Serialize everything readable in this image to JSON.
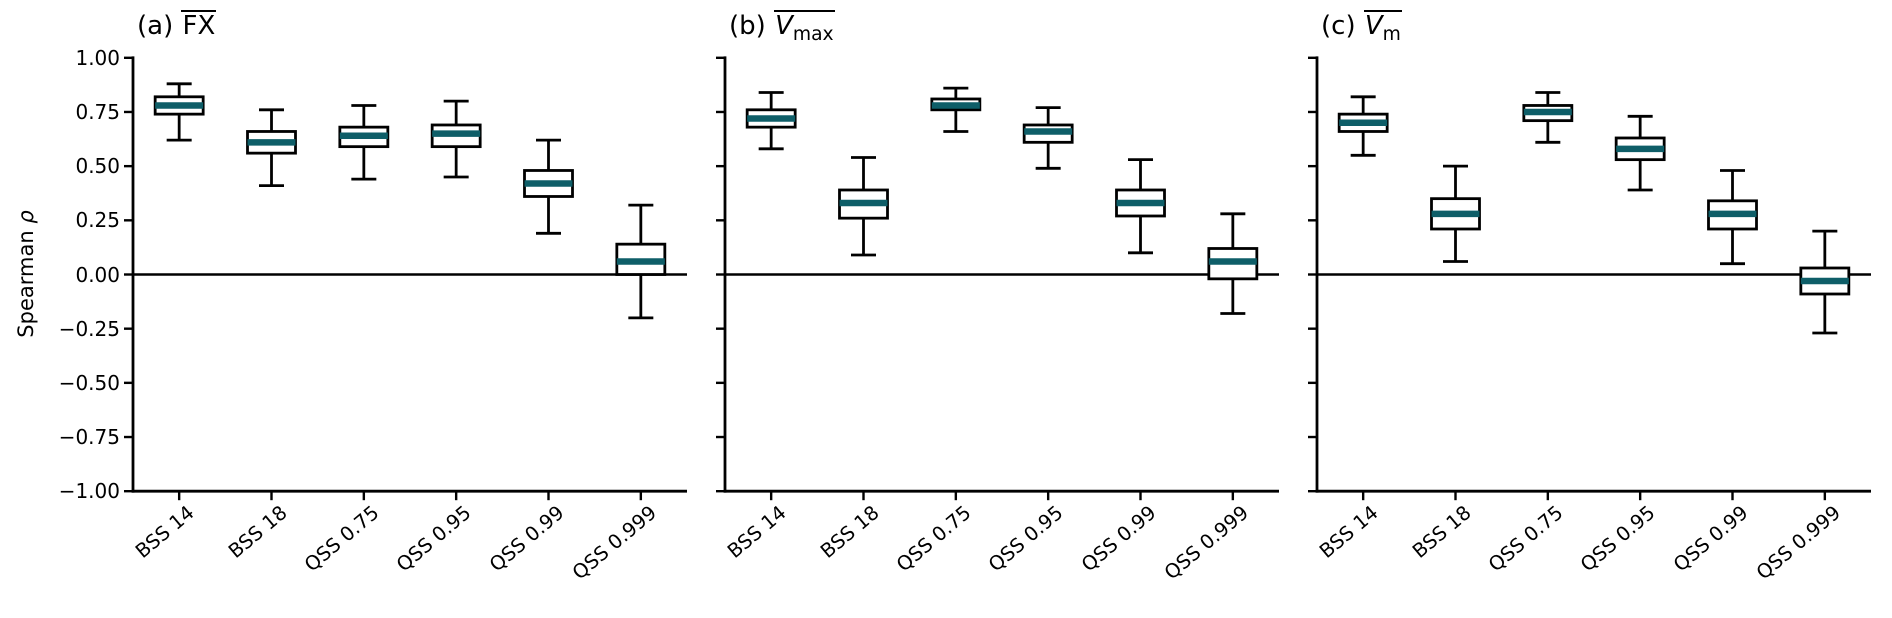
{
  "figure": {
    "ylabel_text": "Spearman",
    "ylabel_symbol": "ρ",
    "background": "#ffffff",
    "axis_color": "#000000",
    "median_color": "#0e5e68",
    "box_fill": "#ffffff",
    "y_axis": {
      "min": -1.0,
      "max": 1.0,
      "ticks": [
        {
          "value": 1.0,
          "label": "1.00"
        },
        {
          "value": 0.75,
          "label": "0.75"
        },
        {
          "value": 0.5,
          "label": "0.50"
        },
        {
          "value": 0.25,
          "label": "0.25"
        },
        {
          "value": 0.0,
          "label": "0.00"
        },
        {
          "value": -0.25,
          "label": "−0.25"
        },
        {
          "value": -0.5,
          "label": "−0.50"
        },
        {
          "value": -0.75,
          "label": "−0.75"
        },
        {
          "value": -1.0,
          "label": "−1.00"
        }
      ]
    },
    "categories": [
      "BSS 14",
      "BSS 18",
      "QSS 0.75",
      "QSS 0.95",
      "QSS 0.99",
      "QSS 0.999"
    ]
  },
  "chart_data": [
    {
      "type": "boxplot",
      "panel": "a",
      "title": {
        "prefix": "(a)",
        "overlined": "FX",
        "italic_main": false,
        "subscript": ""
      },
      "ylabel": "Spearman ρ",
      "ylim": [
        -1.0,
        1.0
      ],
      "zero_line": true,
      "show_y_tick_labels": true,
      "categories": [
        "BSS 14",
        "BSS 18",
        "QSS 0.75",
        "QSS 0.95",
        "QSS 0.99",
        "QSS 0.999"
      ],
      "boxes": [
        {
          "category": "BSS 14",
          "whisker_low": 0.62,
          "q1": 0.74,
          "median": 0.78,
          "q3": 0.82,
          "whisker_high": 0.88
        },
        {
          "category": "BSS 18",
          "whisker_low": 0.41,
          "q1": 0.56,
          "median": 0.61,
          "q3": 0.66,
          "whisker_high": 0.76
        },
        {
          "category": "QSS 0.75",
          "whisker_low": 0.44,
          "q1": 0.59,
          "median": 0.64,
          "q3": 0.68,
          "whisker_high": 0.78
        },
        {
          "category": "QSS 0.95",
          "whisker_low": 0.45,
          "q1": 0.59,
          "median": 0.65,
          "q3": 0.69,
          "whisker_high": 0.8
        },
        {
          "category": "QSS 0.99",
          "whisker_low": 0.19,
          "q1": 0.36,
          "median": 0.42,
          "q3": 0.48,
          "whisker_high": 0.62
        },
        {
          "category": "QSS 0.999",
          "whisker_low": -0.2,
          "q1": 0.0,
          "median": 0.06,
          "q3": 0.14,
          "whisker_high": 0.32
        }
      ]
    },
    {
      "type": "boxplot",
      "panel": "b",
      "title": {
        "prefix": "(b)",
        "overlined": "V",
        "italic_main": true,
        "subscript": "max"
      },
      "ylabel": "Spearman ρ",
      "ylim": [
        -1.0,
        1.0
      ],
      "zero_line": true,
      "show_y_tick_labels": false,
      "categories": [
        "BSS 14",
        "BSS 18",
        "QSS 0.75",
        "QSS 0.95",
        "QSS 0.99",
        "QSS 0.999"
      ],
      "boxes": [
        {
          "category": "BSS 14",
          "whisker_low": 0.58,
          "q1": 0.68,
          "median": 0.72,
          "q3": 0.76,
          "whisker_high": 0.84
        },
        {
          "category": "BSS 18",
          "whisker_low": 0.09,
          "q1": 0.26,
          "median": 0.33,
          "q3": 0.39,
          "whisker_high": 0.54
        },
        {
          "category": "QSS 0.75",
          "whisker_low": 0.66,
          "q1": 0.76,
          "median": 0.78,
          "q3": 0.81,
          "whisker_high": 0.86
        },
        {
          "category": "QSS 0.95",
          "whisker_low": 0.49,
          "q1": 0.61,
          "median": 0.66,
          "q3": 0.69,
          "whisker_high": 0.77
        },
        {
          "category": "QSS 0.99",
          "whisker_low": 0.1,
          "q1": 0.27,
          "median": 0.33,
          "q3": 0.39,
          "whisker_high": 0.53
        },
        {
          "category": "QSS 0.999",
          "whisker_low": -0.18,
          "q1": -0.02,
          "median": 0.06,
          "q3": 0.12,
          "whisker_high": 0.28
        }
      ]
    },
    {
      "type": "boxplot",
      "panel": "c",
      "title": {
        "prefix": "(c)",
        "overlined": "V",
        "italic_main": true,
        "subscript": "m"
      },
      "ylabel": "Spearman ρ",
      "ylim": [
        -1.0,
        1.0
      ],
      "zero_line": true,
      "show_y_tick_labels": false,
      "categories": [
        "BSS 14",
        "BSS 18",
        "QSS 0.75",
        "QSS 0.95",
        "QSS 0.99",
        "QSS 0.999"
      ],
      "boxes": [
        {
          "category": "BSS 14",
          "whisker_low": 0.55,
          "q1": 0.66,
          "median": 0.7,
          "q3": 0.74,
          "whisker_high": 0.82
        },
        {
          "category": "BSS 18",
          "whisker_low": 0.06,
          "q1": 0.21,
          "median": 0.28,
          "q3": 0.35,
          "whisker_high": 0.5
        },
        {
          "category": "QSS 0.75",
          "whisker_low": 0.61,
          "q1": 0.71,
          "median": 0.75,
          "q3": 0.78,
          "whisker_high": 0.84
        },
        {
          "category": "QSS 0.95",
          "whisker_low": 0.39,
          "q1": 0.53,
          "median": 0.58,
          "q3": 0.63,
          "whisker_high": 0.73
        },
        {
          "category": "QSS 0.99",
          "whisker_low": 0.05,
          "q1": 0.21,
          "median": 0.28,
          "q3": 0.34,
          "whisker_high": 0.48
        },
        {
          "category": "QSS 0.999",
          "whisker_low": -0.27,
          "q1": -0.09,
          "median": -0.03,
          "q3": 0.03,
          "whisker_high": 0.2
        }
      ]
    }
  ]
}
